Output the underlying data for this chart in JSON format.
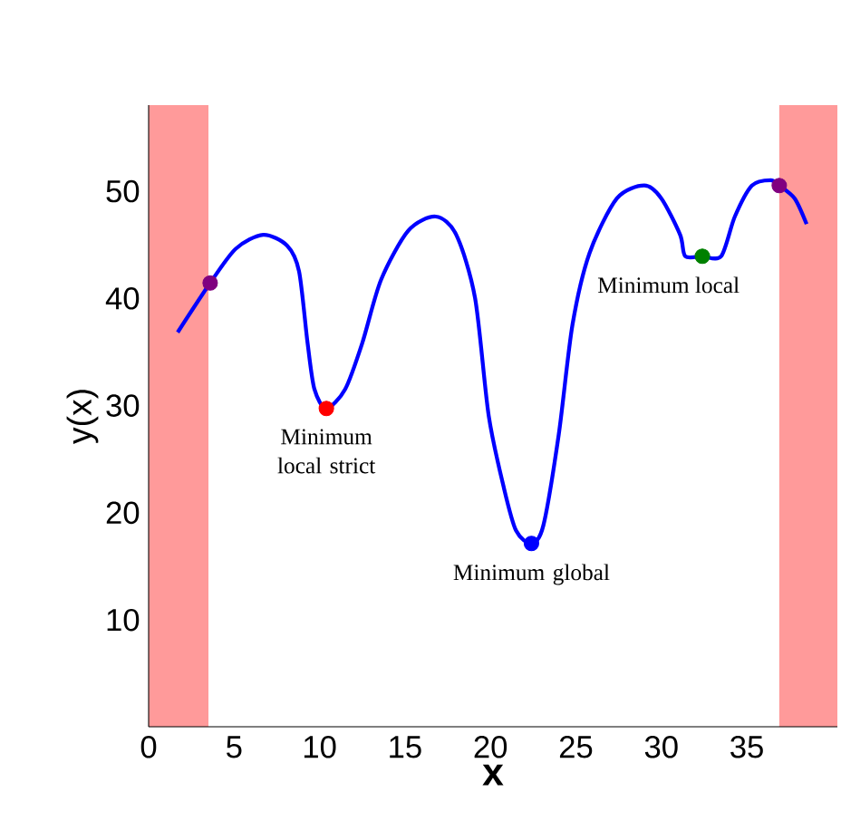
{
  "chart_data": {
    "type": "line",
    "xlabel": "x",
    "ylabel": "y(x)",
    "xlim": [
      0,
      40.3
    ],
    "ylim": [
      0,
      58
    ],
    "xticks": [
      0,
      5,
      10,
      15,
      20,
      25,
      30,
      35
    ],
    "yticks": [
      10,
      20,
      30,
      40,
      50
    ],
    "grid": false,
    "bands": [
      {
        "axis": "x",
        "from": 0,
        "to": 3.5,
        "color": "#ff9a9a"
      },
      {
        "axis": "x",
        "from": 36.9,
        "to": 40.3,
        "color": "#ff9a9a"
      }
    ],
    "series": [
      {
        "color": "#0000ff",
        "marker": "none",
        "x": [
          1.7,
          3.6,
          5.1,
          6.7,
          8.1,
          8.8,
          9.3,
          9.7,
          10.4,
          11.5,
          12.5,
          13.6,
          15.2,
          16.8,
          18,
          19.1,
          19.9,
          20.8,
          21.5,
          22.4,
          23.1,
          24,
          24.8,
          25.8,
          27.4,
          29,
          30,
          31.1,
          31.4,
          32.4,
          33.5,
          34.3,
          35.3,
          36.4,
          36.9,
          37.8,
          38.5
        ],
        "values": [
          36.8,
          41.4,
          44.6,
          45.9,
          44.9,
          42.5,
          35.8,
          31.5,
          29.7,
          31.5,
          35.8,
          41.7,
          46.3,
          47.6,
          45.9,
          40,
          29,
          22.2,
          18.3,
          17.1,
          18.8,
          27.3,
          37.5,
          44.2,
          49.3,
          50.5,
          49.3,
          45.9,
          43.9,
          43.9,
          43.9,
          47.6,
          50.5,
          51,
          50.5,
          49.3,
          46.9
        ]
      },
      {
        "type": "scatter",
        "marker": "circle",
        "x": [
          3.6,
          10.4,
          22.4,
          32.4,
          36.9
        ],
        "values": [
          41.4,
          29.7,
          17.1,
          43.9,
          50.5
        ],
        "colors": [
          "#800080",
          "#ff0000",
          "#0000ff",
          "#008000",
          "#800080"
        ]
      }
    ],
    "annotations": [
      {
        "text": "Minimum local strict",
        "x": 10.4,
        "y": 29.7
      },
      {
        "text": "Minimum global",
        "x": 22.4,
        "y": 17.1
      },
      {
        "text": "Minimum local",
        "x": 32.4,
        "y": 43.9
      }
    ]
  }
}
